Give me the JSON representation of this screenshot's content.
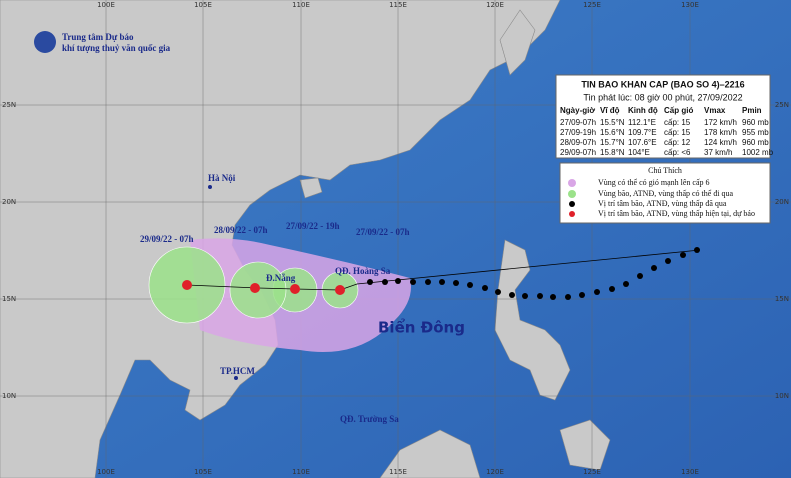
{
  "header": {
    "org_line1": "Trung tâm Dự báo",
    "org_line2": "khí tượng thuỷ văn quốc gia"
  },
  "bulletin": {
    "title": "TIN BAO KHAN CAP  (BAO SO 4)–2216",
    "issued": "Tin phát lúc: 08 giờ 00 phút, 27/09/2022",
    "columns": [
      "Ngày-giờ",
      "Vĩ độ",
      "Kinh độ",
      "Cấp gió",
      "Vmax",
      "Pmin"
    ],
    "rows": [
      [
        "27/09-07h",
        "15.5°N",
        "112.1°E",
        "cấp: 15",
        "172 km/h",
        "960 mb"
      ],
      [
        "27/09-19h",
        "15.6°N",
        "109.7°E",
        "cấp: 15",
        "178 km/h",
        "955 mb"
      ],
      [
        "28/09-07h",
        "15.7°N",
        "107.6°E",
        "cấp: 12",
        "124 km/h",
        "960 mb"
      ],
      [
        "29/09-07h",
        "15.8°N",
        "104°E",
        "cấp: <6",
        "37 km/h",
        "1002 mb"
      ]
    ]
  },
  "legend": {
    "title": "Chú Thích",
    "items": [
      "Vùng có thể có gió mạnh lên cấp 6",
      "Vùng bão, ATNĐ, vùng thấp có thể đi qua",
      "Vị trí tâm bão, ATNĐ, vùng thấp đã qua",
      "Vị trí tâm bão, ATNĐ, vùng thấp hiện tại, dự báo"
    ]
  },
  "map_labels": {
    "hanoi": "Hà Nội",
    "danang": "Đ.Nẵng",
    "hoangsa": "QĐ. Hoàng Sa",
    "hcm": "TP.HCM",
    "truongsa": "QĐ. Trường Sa",
    "sea": "Biển Đông",
    "times": [
      "29/09/22 - 07h",
      "28/09/22 - 07h",
      "27/09/22 - 19h",
      "27/09/22 - 07h"
    ]
  },
  "axes": {
    "lon": [
      "100E",
      "105E",
      "110E",
      "115E",
      "120E",
      "125E",
      "130E"
    ],
    "lat": [
      "25N",
      "20N",
      "15N",
      "10N"
    ]
  }
}
